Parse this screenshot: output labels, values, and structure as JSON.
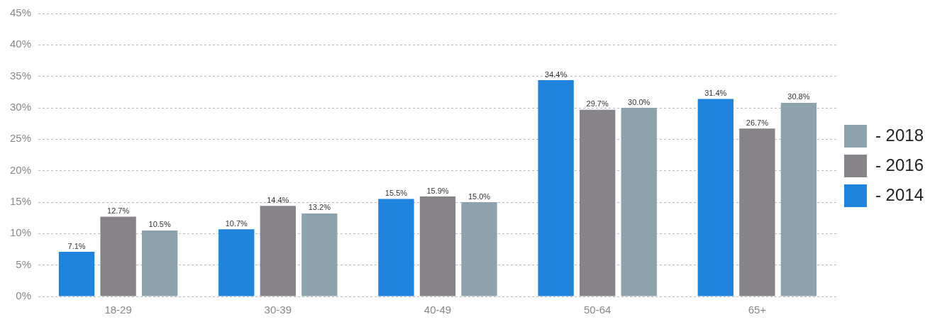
{
  "chart_data": {
    "type": "bar",
    "categories": [
      "18-29",
      "30-39",
      "40-49",
      "50-64",
      "65+"
    ],
    "series": [
      {
        "name": "- 2014",
        "color": "#1e84de",
        "values": [
          7.1,
          10.7,
          15.5,
          34.4,
          31.4
        ],
        "value_labels": [
          "7.1%",
          "10.7%",
          "15.5%",
          "34.4%",
          "31.4%"
        ]
      },
      {
        "name": "- 2016",
        "color": "#868489",
        "values": [
          12.7,
          14.4,
          15.9,
          29.7,
          26.7
        ],
        "value_labels": [
          "12.7%",
          "14.4%",
          "15.9%",
          "29.7%",
          "26.7%"
        ]
      },
      {
        "name": "- 2018",
        "color": "#8ca3ad",
        "values": [
          10.5,
          13.2,
          15.0,
          30.0,
          30.8
        ],
        "value_labels": [
          "10.5%",
          "13.2%",
          "15.0%",
          "30.0%",
          "30.8%"
        ]
      }
    ],
    "ylim": [
      0,
      45
    ],
    "yticks": [
      {
        "value": 0,
        "label": "0%"
      },
      {
        "value": 5,
        "label": "5%"
      },
      {
        "value": 10,
        "label": "10%"
      },
      {
        "value": 15,
        "label": "15%"
      },
      {
        "value": 20,
        "label": "20%"
      },
      {
        "value": 25,
        "label": "25%"
      },
      {
        "value": 30,
        "label": "30%"
      },
      {
        "value": 35,
        "label": "35%"
      },
      {
        "value": 40,
        "label": "40%"
      },
      {
        "value": 45,
        "label": "45%"
      }
    ],
    "grid": true,
    "legend": "right",
    "data_labels": true
  }
}
